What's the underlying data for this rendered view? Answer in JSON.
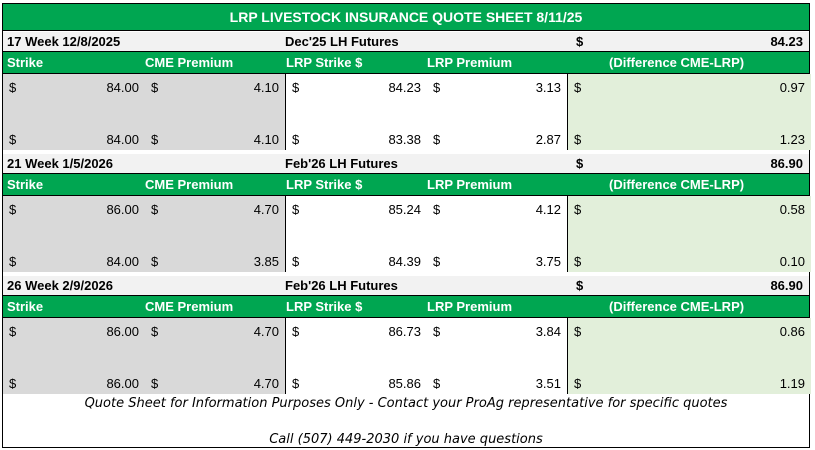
{
  "title": "LRP LIVESTOCK INSURANCE QUOTE SHEET 8/11/25",
  "columns": {
    "strike": "Strike",
    "cme_premium": "CME Premium",
    "lrp_strike": "LRP Strike $",
    "lrp_premium": "LRP Premium",
    "difference": "(Difference CME-LRP)"
  },
  "currency_symbol": "$",
  "sections": [
    {
      "week": "17 Week 12/8/2025",
      "futures_label": "Dec'25 LH Futures",
      "futures_price": "84.23",
      "rows": [
        {
          "strike": "84.00",
          "cme_premium": "4.10",
          "lrp_strike": "84.23",
          "lrp_premium": "3.13",
          "difference": "0.97"
        },
        {
          "strike": "84.00",
          "cme_premium": "4.10",
          "lrp_strike": "83.38",
          "lrp_premium": "2.87",
          "difference": "1.23"
        }
      ]
    },
    {
      "week": "21 Week 1/5/2026",
      "futures_label": "Feb'26 LH Futures",
      "futures_price": "86.90",
      "rows": [
        {
          "strike": "86.00",
          "cme_premium": "4.70",
          "lrp_strike": "85.24",
          "lrp_premium": "4.12",
          "difference": "0.58"
        },
        {
          "strike": "84.00",
          "cme_premium": "3.85",
          "lrp_strike": "84.39",
          "lrp_premium": "3.75",
          "difference": "0.10"
        }
      ]
    },
    {
      "week": "26 Week 2/9/2026",
      "futures_label": "Feb'26 LH Futures",
      "futures_price": "86.90",
      "rows": [
        {
          "strike": "86.00",
          "cme_premium": "4.70",
          "lrp_strike": "86.73",
          "lrp_premium": "3.84",
          "difference": "0.86"
        },
        {
          "strike": "86.00",
          "cme_premium": "4.70",
          "lrp_strike": "85.86",
          "lrp_premium": "3.51",
          "difference": "1.19"
        }
      ]
    }
  ],
  "footer": {
    "disclaimer": "Quote Sheet for Information Purposes Only - Contact your ProAg representative for specific quotes",
    "contact": "Call (507) 449-2030 if you have questions"
  },
  "colors": {
    "header_green": "#00a651",
    "cme_cell_bg": "#d9d9d9",
    "difference_cell_bg": "#e2efda",
    "week_row_bg": "#f2f2f2"
  }
}
